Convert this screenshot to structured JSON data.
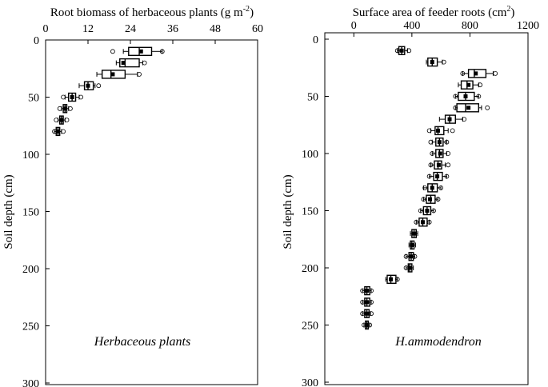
{
  "chart_data": [
    {
      "type": "box",
      "title_parts": {
        "main": "Root biomass of herbaceous plants (g m",
        "sup": "-2",
        "end": ")"
      },
      "xlabel": "Root biomass of herbaceous plants (g m-2)",
      "ylabel": "Soil depth (cm)",
      "panel_label": "Herbaceous plants",
      "xlim": [
        0,
        60
      ],
      "xticks": [
        "0",
        "12",
        "24",
        "36",
        "48",
        "60"
      ],
      "ylim": [
        0,
        300
      ],
      "yticks": [
        "0",
        "50",
        "100",
        "150",
        "200",
        "250",
        "300"
      ],
      "series": [
        {
          "depth": 10,
          "min": 22,
          "q1": 23.5,
          "median": 26.5,
          "q3": 30,
          "max": 33,
          "mean": 27,
          "outliers": [
            19,
            33
          ]
        },
        {
          "depth": 20,
          "min": 20,
          "q1": 21,
          "median": 22.5,
          "q3": 26.5,
          "max": 27.5,
          "mean": 22,
          "outliers": [
            28
          ]
        },
        {
          "depth": 30,
          "min": 14.5,
          "q1": 16,
          "median": 18.5,
          "q3": 22.5,
          "max": 26,
          "mean": 19,
          "outliers": [
            26.5
          ]
        },
        {
          "depth": 40,
          "min": 9.5,
          "q1": 11,
          "median": 12,
          "q3": 13.5,
          "max": 14,
          "mean": 12,
          "outliers": [
            15
          ]
        },
        {
          "depth": 50,
          "min": 5.5,
          "q1": 6.5,
          "median": 7.5,
          "q3": 8.5,
          "max": 9.5,
          "mean": 7.5,
          "outliers": [
            5,
            10
          ]
        },
        {
          "depth": 60,
          "min": 4.5,
          "q1": 5,
          "median": 5.5,
          "q3": 6,
          "max": 6.5,
          "mean": 5.5,
          "outliers": [
            4,
            7
          ]
        },
        {
          "depth": 70,
          "min": 3.5,
          "q1": 4,
          "median": 4.5,
          "q3": 5,
          "max": 5.5,
          "mean": 4.5,
          "outliers": [
            3,
            6
          ]
        },
        {
          "depth": 80,
          "min": 2.5,
          "q1": 3,
          "median": 3.5,
          "q3": 4,
          "max": 4.5,
          "mean": 3.5,
          "outliers": [
            2.5,
            5
          ]
        }
      ]
    },
    {
      "type": "box",
      "title_parts": {
        "main": "Surface area of  feeder roots (cm",
        "sup": "2",
        "end": ")"
      },
      "xlabel": "Surface area of feeder roots (cm2)",
      "ylabel": "Soil depth (cm)",
      "panel_label": "H.ammodendron",
      "xlim": [
        -200,
        1200
      ],
      "xticks": [
        "0",
        "400",
        "800",
        "1200"
      ],
      "ylim": [
        0,
        300
      ],
      "yticks": [
        "0",
        "50",
        "100",
        "150",
        "200",
        "250",
        "300"
      ],
      "series": [
        {
          "depth": 10,
          "min": 300,
          "q1": 310,
          "median": 330,
          "q3": 350,
          "max": 370,
          "mean": 330,
          "outliers": [
            300,
            380
          ]
        },
        {
          "depth": 20,
          "min": 500,
          "q1": 510,
          "median": 540,
          "q3": 575,
          "max": 610,
          "mean": 540,
          "outliers": [
            620
          ]
        },
        {
          "depth": 30,
          "min": 750,
          "q1": 790,
          "median": 830,
          "q3": 910,
          "max": 960,
          "mean": 840,
          "outliers": [
            750,
            975
          ]
        },
        {
          "depth": 40,
          "min": 720,
          "q1": 740,
          "median": 780,
          "q3": 820,
          "max": 860,
          "mean": 790,
          "outliers": [
            870
          ]
        },
        {
          "depth": 50,
          "min": 700,
          "q1": 720,
          "median": 770,
          "q3": 830,
          "max": 860,
          "mean": 770,
          "outliers": [
            700,
            860
          ]
        },
        {
          "depth": 60,
          "min": 700,
          "q1": 710,
          "median": 770,
          "q3": 860,
          "max": 880,
          "mean": 790,
          "outliers": [
            700,
            920
          ]
        },
        {
          "depth": 70,
          "min": 590,
          "q1": 630,
          "median": 660,
          "q3": 700,
          "max": 750,
          "mean": 660,
          "outliers": [
            760
          ]
        },
        {
          "depth": 80,
          "min": 530,
          "q1": 560,
          "median": 580,
          "q3": 620,
          "max": 650,
          "mean": 580,
          "outliers": [
            520,
            680
          ]
        },
        {
          "depth": 90,
          "min": 540,
          "q1": 565,
          "median": 590,
          "q3": 615,
          "max": 640,
          "mean": 590,
          "outliers": [
            530,
            640
          ]
        },
        {
          "depth": 100,
          "min": 540,
          "q1": 565,
          "median": 590,
          "q3": 615,
          "max": 640,
          "mean": 595,
          "outliers": [
            540,
            650
          ]
        },
        {
          "depth": 110,
          "min": 530,
          "q1": 555,
          "median": 580,
          "q3": 605,
          "max": 630,
          "mean": 585,
          "outliers": [
            530,
            650
          ]
        },
        {
          "depth": 120,
          "min": 520,
          "q1": 550,
          "median": 575,
          "q3": 610,
          "max": 640,
          "mean": 575,
          "outliers": [
            520,
            640
          ]
        },
        {
          "depth": 130,
          "min": 480,
          "q1": 510,
          "median": 540,
          "q3": 575,
          "max": 600,
          "mean": 540,
          "outliers": [
            490,
            600
          ]
        },
        {
          "depth": 140,
          "min": 480,
          "q1": 500,
          "median": 530,
          "q3": 560,
          "max": 580,
          "mean": 525,
          "outliers": [
            480,
            580
          ]
        },
        {
          "depth": 150,
          "min": 460,
          "q1": 480,
          "median": 505,
          "q3": 530,
          "max": 550,
          "mean": 505,
          "outliers": [
            460,
            550
          ]
        },
        {
          "depth": 160,
          "min": 430,
          "q1": 450,
          "median": 475,
          "q3": 505,
          "max": 520,
          "mean": 475,
          "outliers": [
            430,
            520
          ]
        },
        {
          "depth": 170,
          "min": 390,
          "q1": 400,
          "median": 415,
          "q3": 430,
          "max": 440,
          "mean": 415,
          "outliers": []
        },
        {
          "depth": 180,
          "min": 380,
          "q1": 390,
          "median": 400,
          "q3": 415,
          "max": 425,
          "mean": 400,
          "outliers": []
        },
        {
          "depth": 190,
          "min": 360,
          "q1": 380,
          "median": 395,
          "q3": 410,
          "max": 420,
          "mean": 395,
          "outliers": [
            360,
            420
          ]
        },
        {
          "depth": 200,
          "min": 360,
          "q1": 375,
          "median": 385,
          "q3": 400,
          "max": 410,
          "mean": 385,
          "outliers": [
            360
          ]
        },
        {
          "depth": 210,
          "min": 220,
          "q1": 230,
          "median": 255,
          "q3": 290,
          "max": 300,
          "mean": 255,
          "outliers": [
            300
          ]
        },
        {
          "depth": 220,
          "min": 60,
          "q1": 75,
          "median": 90,
          "q3": 110,
          "max": 120,
          "mean": 90,
          "outliers": [
            60,
            120
          ]
        },
        {
          "depth": 230,
          "min": 60,
          "q1": 75,
          "median": 90,
          "q3": 110,
          "max": 120,
          "mean": 90,
          "outliers": [
            60,
            120
          ]
        },
        {
          "depth": 240,
          "min": 60,
          "q1": 75,
          "median": 90,
          "q3": 105,
          "max": 115,
          "mean": 90,
          "outliers": [
            60,
            120
          ]
        },
        {
          "depth": 250,
          "min": 70,
          "q1": 80,
          "median": 90,
          "q3": 100,
          "max": 110,
          "mean": 90,
          "outliers": [
            70,
            110
          ]
        }
      ]
    }
  ]
}
